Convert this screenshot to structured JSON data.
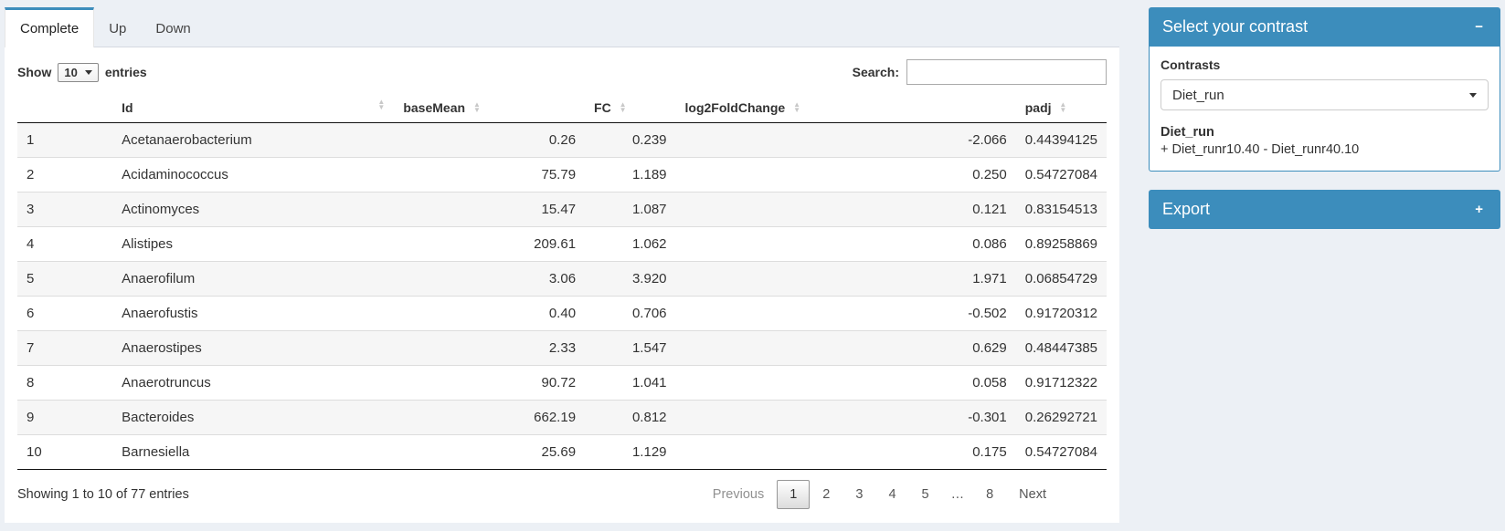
{
  "tabs": [
    {
      "label": "Complete",
      "active": true
    },
    {
      "label": "Up",
      "active": false
    },
    {
      "label": "Down",
      "active": false
    }
  ],
  "controls": {
    "show_label": "Show",
    "page_length": "10",
    "entries_label": "entries",
    "search_label": "Search:",
    "search_value": ""
  },
  "table": {
    "headers": {
      "id": "Id",
      "base_mean": "baseMean",
      "fc": "FC",
      "log2fc": "log2FoldChange",
      "padj": "padj"
    },
    "rows": [
      {
        "index": "1",
        "id": "Acetanaerobacterium",
        "base_mean": "0.26",
        "fc": "0.239",
        "log2fc": "-2.066",
        "padj": "0.44394125"
      },
      {
        "index": "2",
        "id": "Acidaminococcus",
        "base_mean": "75.79",
        "fc": "1.189",
        "log2fc": "0.250",
        "padj": "0.54727084"
      },
      {
        "index": "3",
        "id": "Actinomyces",
        "base_mean": "15.47",
        "fc": "1.087",
        "log2fc": "0.121",
        "padj": "0.83154513"
      },
      {
        "index": "4",
        "id": "Alistipes",
        "base_mean": "209.61",
        "fc": "1.062",
        "log2fc": "0.086",
        "padj": "0.89258869"
      },
      {
        "index": "5",
        "id": "Anaerofilum",
        "base_mean": "3.06",
        "fc": "3.920",
        "log2fc": "1.971",
        "padj": "0.06854729"
      },
      {
        "index": "6",
        "id": "Anaerofustis",
        "base_mean": "0.40",
        "fc": "0.706",
        "log2fc": "-0.502",
        "padj": "0.91720312"
      },
      {
        "index": "7",
        "id": "Anaerostipes",
        "base_mean": "2.33",
        "fc": "1.547",
        "log2fc": "0.629",
        "padj": "0.48447385"
      },
      {
        "index": "8",
        "id": "Anaerotruncus",
        "base_mean": "90.72",
        "fc": "1.041",
        "log2fc": "0.058",
        "padj": "0.91712322"
      },
      {
        "index": "9",
        "id": "Bacteroides",
        "base_mean": "662.19",
        "fc": "0.812",
        "log2fc": "-0.301",
        "padj": "0.26292721"
      },
      {
        "index": "10",
        "id": "Barnesiella",
        "base_mean": "25.69",
        "fc": "1.129",
        "log2fc": "0.175",
        "padj": "0.54727084"
      }
    ]
  },
  "footer": {
    "info": "Showing 1 to 10 of 77 entries",
    "pagination": {
      "previous": "Previous",
      "pages": [
        "1",
        "2",
        "3",
        "4",
        "5",
        "…",
        "8"
      ],
      "active_page": "1",
      "ellipsis": "…",
      "next": "Next"
    }
  },
  "contrast_box": {
    "title": "Select your contrast",
    "collapse_icon": "−",
    "contrasts_label": "Contrasts",
    "selected_contrast": "Diet_run",
    "contrast_name": "Diet_run",
    "contrast_formula": "+ Diet_runr10.40 - Diet_runr40.10"
  },
  "export_box": {
    "title": "Export",
    "expand_icon": "+"
  },
  "colors": {
    "primary": "#3c8dbc",
    "stripe": "#f6f6f6"
  }
}
